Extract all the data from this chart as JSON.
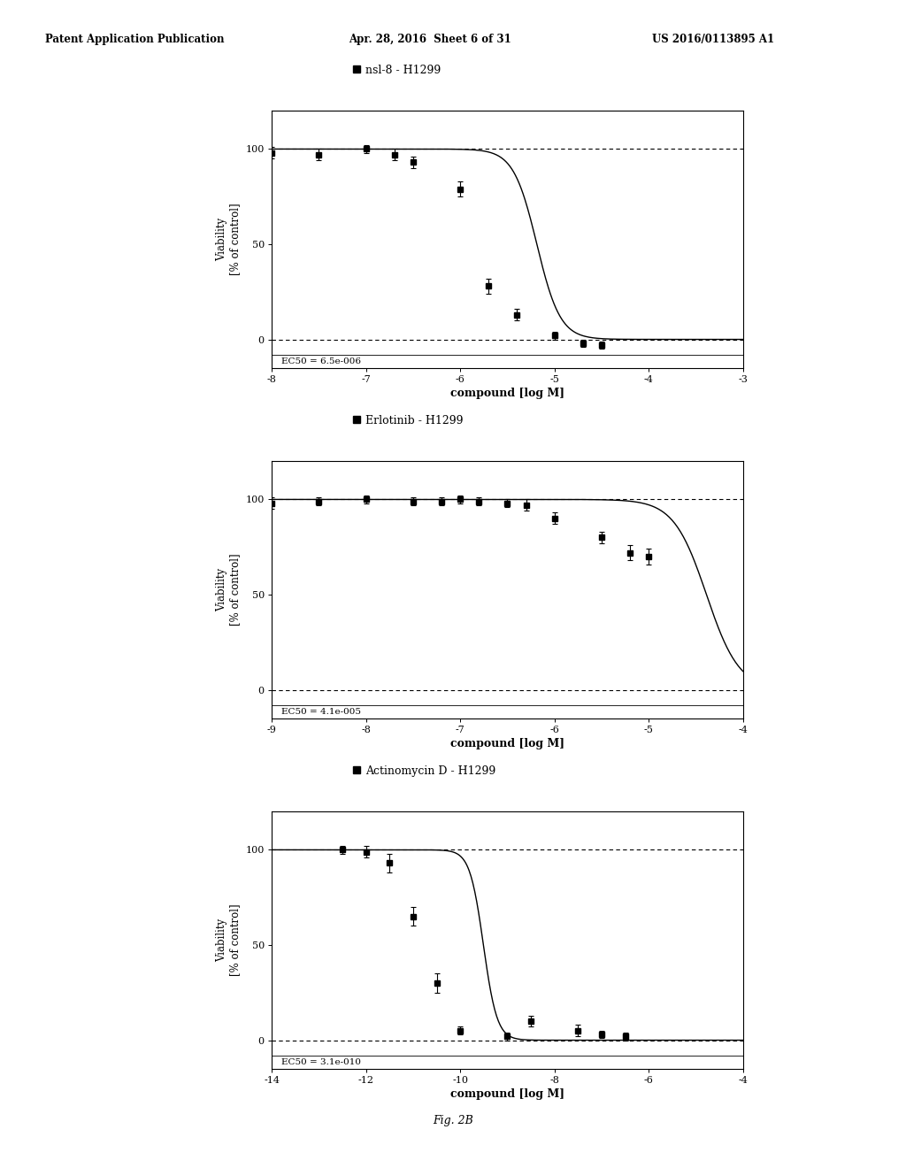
{
  "header_left": "Patent Application Publication",
  "header_mid": "Apr. 28, 2016  Sheet 6 of 31",
  "header_right": "US 2016/0113895 A1",
  "footer": "Fig. 2B",
  "background_color": "#ffffff",
  "plots": [
    {
      "legend_label": "nsl-8 - H1299",
      "ec50_text": "EC50 = 6.5e-006",
      "ec50_log": -5.187,
      "hill": 3.5,
      "xlim": [
        -8,
        -3
      ],
      "xticks": [
        -8,
        -7,
        -6,
        -5,
        -4,
        -3
      ],
      "xlabel": "compound [log M]",
      "ylabel": "Viability\n[% of control]",
      "yticks": [
        0,
        50,
        100
      ],
      "ylim": [
        -15,
        120
      ],
      "data_x": [
        -8.0,
        -7.5,
        -7.0,
        -6.7,
        -6.5,
        -6.0,
        -5.7,
        -5.4,
        -5.0,
        -4.7,
        -4.5
      ],
      "data_y": [
        98,
        97,
        100,
        97,
        93,
        79,
        28,
        13,
        2,
        -2,
        -3
      ],
      "data_yerr": [
        3,
        3,
        2,
        3,
        3,
        4,
        4,
        3,
        2,
        2,
        2
      ]
    },
    {
      "legend_label": "Erlotinib - H1299",
      "ec50_text": "EC50 = 4.1e-005",
      "ec50_log": -4.387,
      "hill": 2.5,
      "xlim": [
        -9,
        -4
      ],
      "xticks": [
        -9,
        -8,
        -7,
        -6,
        -5,
        -4
      ],
      "xlabel": "compound [log M]",
      "ylabel": "Viability\n[% of control]",
      "yticks": [
        0,
        50,
        100
      ],
      "ylim": [
        -15,
        120
      ],
      "data_x": [
        -9.0,
        -8.5,
        -8.0,
        -7.5,
        -7.2,
        -7.0,
        -6.8,
        -6.5,
        -6.3,
        -6.0,
        -5.5,
        -5.2,
        -5.0
      ],
      "data_y": [
        98,
        99,
        100,
        99,
        99,
        100,
        99,
        98,
        97,
        90,
        80,
        72,
        70
      ],
      "data_yerr": [
        3,
        2,
        2,
        2,
        2,
        2,
        2,
        2,
        3,
        3,
        3,
        4,
        4
      ]
    },
    {
      "legend_label": "Actinomycin D - H1299",
      "ec50_text": "EC50 = 3.1e-010",
      "ec50_log": -9.508,
      "hill": 3.0,
      "xlim": [
        -14,
        -4
      ],
      "xticks": [
        -14,
        -12,
        -10,
        -8,
        -6,
        -4
      ],
      "xlabel": "compound [log M]",
      "ylabel": "Viability\n[% of control]",
      "yticks": [
        0,
        50,
        100
      ],
      "ylim": [
        -15,
        120
      ],
      "data_x": [
        -12.5,
        -12.0,
        -11.5,
        -11.0,
        -10.5,
        -10.0,
        -9.0,
        -8.5,
        -7.5,
        -7.0,
        -6.5
      ],
      "data_y": [
        100,
        99,
        93,
        65,
        30,
        5,
        2,
        10,
        5,
        3,
        2
      ],
      "data_yerr": [
        2,
        3,
        5,
        5,
        5,
        2,
        2,
        3,
        3,
        2,
        2
      ]
    }
  ]
}
